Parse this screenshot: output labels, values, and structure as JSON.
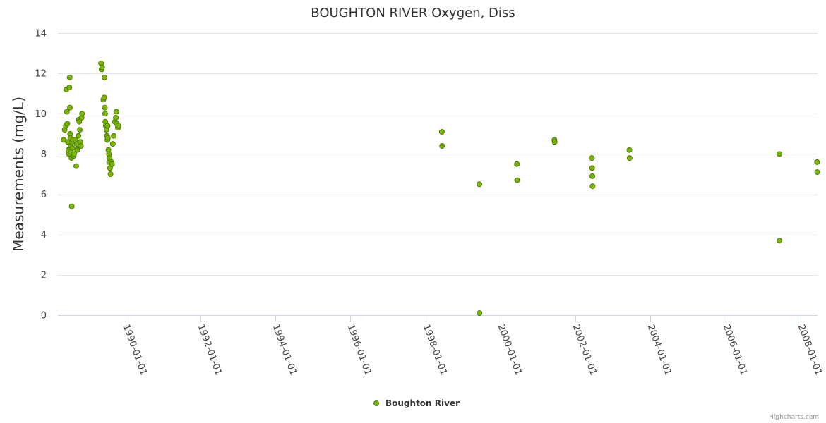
{
  "chart_data": {
    "type": "scatter",
    "title": "BOUGHTON RIVER Oxygen, Diss",
    "ylabel": "Measurements (mg/L)",
    "xlabel": "",
    "ylim": [
      0,
      14
    ],
    "yticks": [
      "0",
      "2",
      "4",
      "6",
      "8",
      "10",
      "12",
      "14"
    ],
    "xlim": [
      "1988-03-15",
      "2008-06-15"
    ],
    "xticks": [
      "1990-01-01",
      "1992-01-01",
      "1994-01-01",
      "1996-01-01",
      "1998-01-01",
      "2000-01-01",
      "2002-01-01",
      "2004-01-01",
      "2006-01-01",
      "2008-01-01"
    ],
    "grid": "horizontal",
    "legend_position": "bottom-center",
    "marker_color": "#7cb50a",
    "marker_edge_color": "#4f7d00",
    "series": [
      {
        "name": "Boughton River",
        "points": [
          [
            "1988-05-10",
            8.7
          ],
          [
            "1988-05-20",
            9.2
          ],
          [
            "1988-06-01",
            9.4
          ],
          [
            "1988-06-05",
            11.2
          ],
          [
            "1988-06-10",
            10.1
          ],
          [
            "1988-06-15",
            9.5
          ],
          [
            "1988-06-20",
            8.6
          ],
          [
            "1988-06-25",
            8.2
          ],
          [
            "1988-07-01",
            8.0
          ],
          [
            "1988-07-05",
            11.3
          ],
          [
            "1988-07-08",
            11.8
          ],
          [
            "1988-07-10",
            10.3
          ],
          [
            "1988-07-12",
            9.0
          ],
          [
            "1988-07-15",
            8.8
          ],
          [
            "1988-07-18",
            8.4
          ],
          [
            "1988-07-20",
            8.1
          ],
          [
            "1988-07-25",
            7.8
          ],
          [
            "1988-07-28",
            5.4
          ],
          [
            "1988-08-01",
            8.6
          ],
          [
            "1988-08-05",
            8.3
          ],
          [
            "1988-08-10",
            8.7
          ],
          [
            "1988-08-15",
            7.9
          ],
          [
            "1988-08-20",
            8.0
          ],
          [
            "1988-09-01",
            8.7
          ],
          [
            "1988-09-10",
            7.4
          ],
          [
            "1988-09-15",
            8.5
          ],
          [
            "1988-09-20",
            8.2
          ],
          [
            "1988-10-01",
            8.9
          ],
          [
            "1988-10-05",
            9.7
          ],
          [
            "1988-10-10",
            9.6
          ],
          [
            "1988-10-15",
            9.2
          ],
          [
            "1988-10-20",
            8.6
          ],
          [
            "1988-10-25",
            8.4
          ],
          [
            "1988-11-01",
            9.8
          ],
          [
            "1988-11-05",
            10.0
          ],
          [
            "1989-05-10",
            12.5
          ],
          [
            "1989-05-15",
            12.2
          ],
          [
            "1989-05-20",
            12.3
          ],
          [
            "1989-06-01",
            10.7
          ],
          [
            "1989-06-10",
            10.8
          ],
          [
            "1989-06-12",
            11.8
          ],
          [
            "1989-06-15",
            10.3
          ],
          [
            "1989-06-18",
            10.0
          ],
          [
            "1989-06-20",
            9.6
          ],
          [
            "1989-06-25",
            9.4
          ],
          [
            "1989-07-01",
            9.2
          ],
          [
            "1989-07-05",
            8.9
          ],
          [
            "1989-07-10",
            8.7
          ],
          [
            "1989-07-12",
            9.4
          ],
          [
            "1989-07-15",
            8.8
          ],
          [
            "1989-07-20",
            8.2
          ],
          [
            "1989-07-25",
            8.0
          ],
          [
            "1989-07-28",
            7.6
          ],
          [
            "1989-08-01",
            7.8
          ],
          [
            "1989-08-05",
            7.3
          ],
          [
            "1989-08-10",
            7.0
          ],
          [
            "1989-08-20",
            7.6
          ],
          [
            "1989-08-25",
            7.5
          ],
          [
            "1989-09-01",
            8.5
          ],
          [
            "1989-09-10",
            8.9
          ],
          [
            "1989-09-20",
            9.6
          ],
          [
            "1989-10-01",
            9.8
          ],
          [
            "1989-10-05",
            10.1
          ],
          [
            "1989-10-10",
            9.5
          ],
          [
            "1989-10-20",
            9.3
          ],
          [
            "1989-10-25",
            9.4
          ],
          [
            "1998-06-10",
            9.1
          ],
          [
            "1998-06-12",
            8.4
          ],
          [
            "1999-06-10",
            6.5
          ],
          [
            "1999-06-12",
            0.1
          ],
          [
            "2000-06-10",
            7.5
          ],
          [
            "2000-06-12",
            6.7
          ],
          [
            "2001-06-10",
            8.7
          ],
          [
            "2001-06-12",
            8.6
          ],
          [
            "2002-06-10",
            7.8
          ],
          [
            "2002-06-12",
            7.3
          ],
          [
            "2002-06-14",
            6.9
          ],
          [
            "2002-06-16",
            6.4
          ],
          [
            "2003-06-10",
            8.2
          ],
          [
            "2003-06-12",
            7.8
          ],
          [
            "2007-06-10",
            8.0
          ],
          [
            "2007-06-12",
            3.7
          ],
          [
            "2008-06-10",
            7.6
          ],
          [
            "2008-06-12",
            7.1
          ]
        ]
      }
    ]
  },
  "credit": "Highcharts.com"
}
